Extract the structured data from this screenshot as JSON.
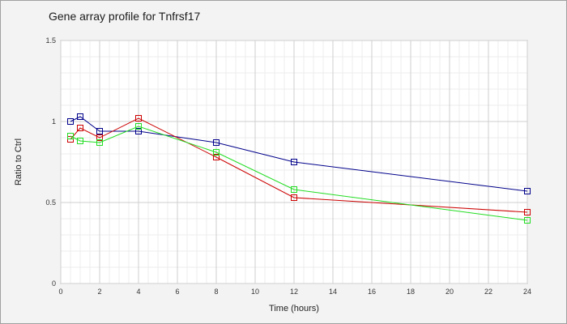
{
  "chart_data": {
    "type": "line",
    "title": "Gene array profile for Tnfrsf17",
    "xlabel": "Time (hours)",
    "ylabel": "Ratio to Ctrl",
    "xlim": [
      0,
      24
    ],
    "ylim": [
      0,
      1.5
    ],
    "x_ticks": [
      0,
      2,
      4,
      6,
      8,
      10,
      12,
      14,
      16,
      18,
      20,
      22,
      24
    ],
    "y_ticks": [
      0,
      0.5,
      1,
      1.5
    ],
    "y_tick_labels": [
      "0",
      "0.5",
      "1",
      "1.5"
    ],
    "grid": true,
    "series": [
      {
        "color": "#00008b",
        "points": [
          [
            0.5,
            1.0
          ],
          [
            1,
            1.03
          ],
          [
            2,
            0.94
          ],
          [
            4,
            0.94
          ],
          [
            8,
            0.87
          ],
          [
            12,
            0.75
          ],
          [
            24,
            0.57
          ]
        ]
      },
      {
        "color": "#cc0000",
        "points": [
          [
            0.5,
            0.89
          ],
          [
            1,
            0.96
          ],
          [
            2,
            0.9
          ],
          [
            4,
            1.02
          ],
          [
            8,
            0.78
          ],
          [
            12,
            0.53
          ],
          [
            24,
            0.44
          ]
        ]
      },
      {
        "color": "#22dd22",
        "points": [
          [
            0.5,
            0.91
          ],
          [
            1,
            0.88
          ],
          [
            2,
            0.87
          ],
          [
            4,
            0.97
          ],
          [
            8,
            0.81
          ],
          [
            12,
            0.58
          ],
          [
            24,
            0.39
          ]
        ]
      }
    ]
  }
}
